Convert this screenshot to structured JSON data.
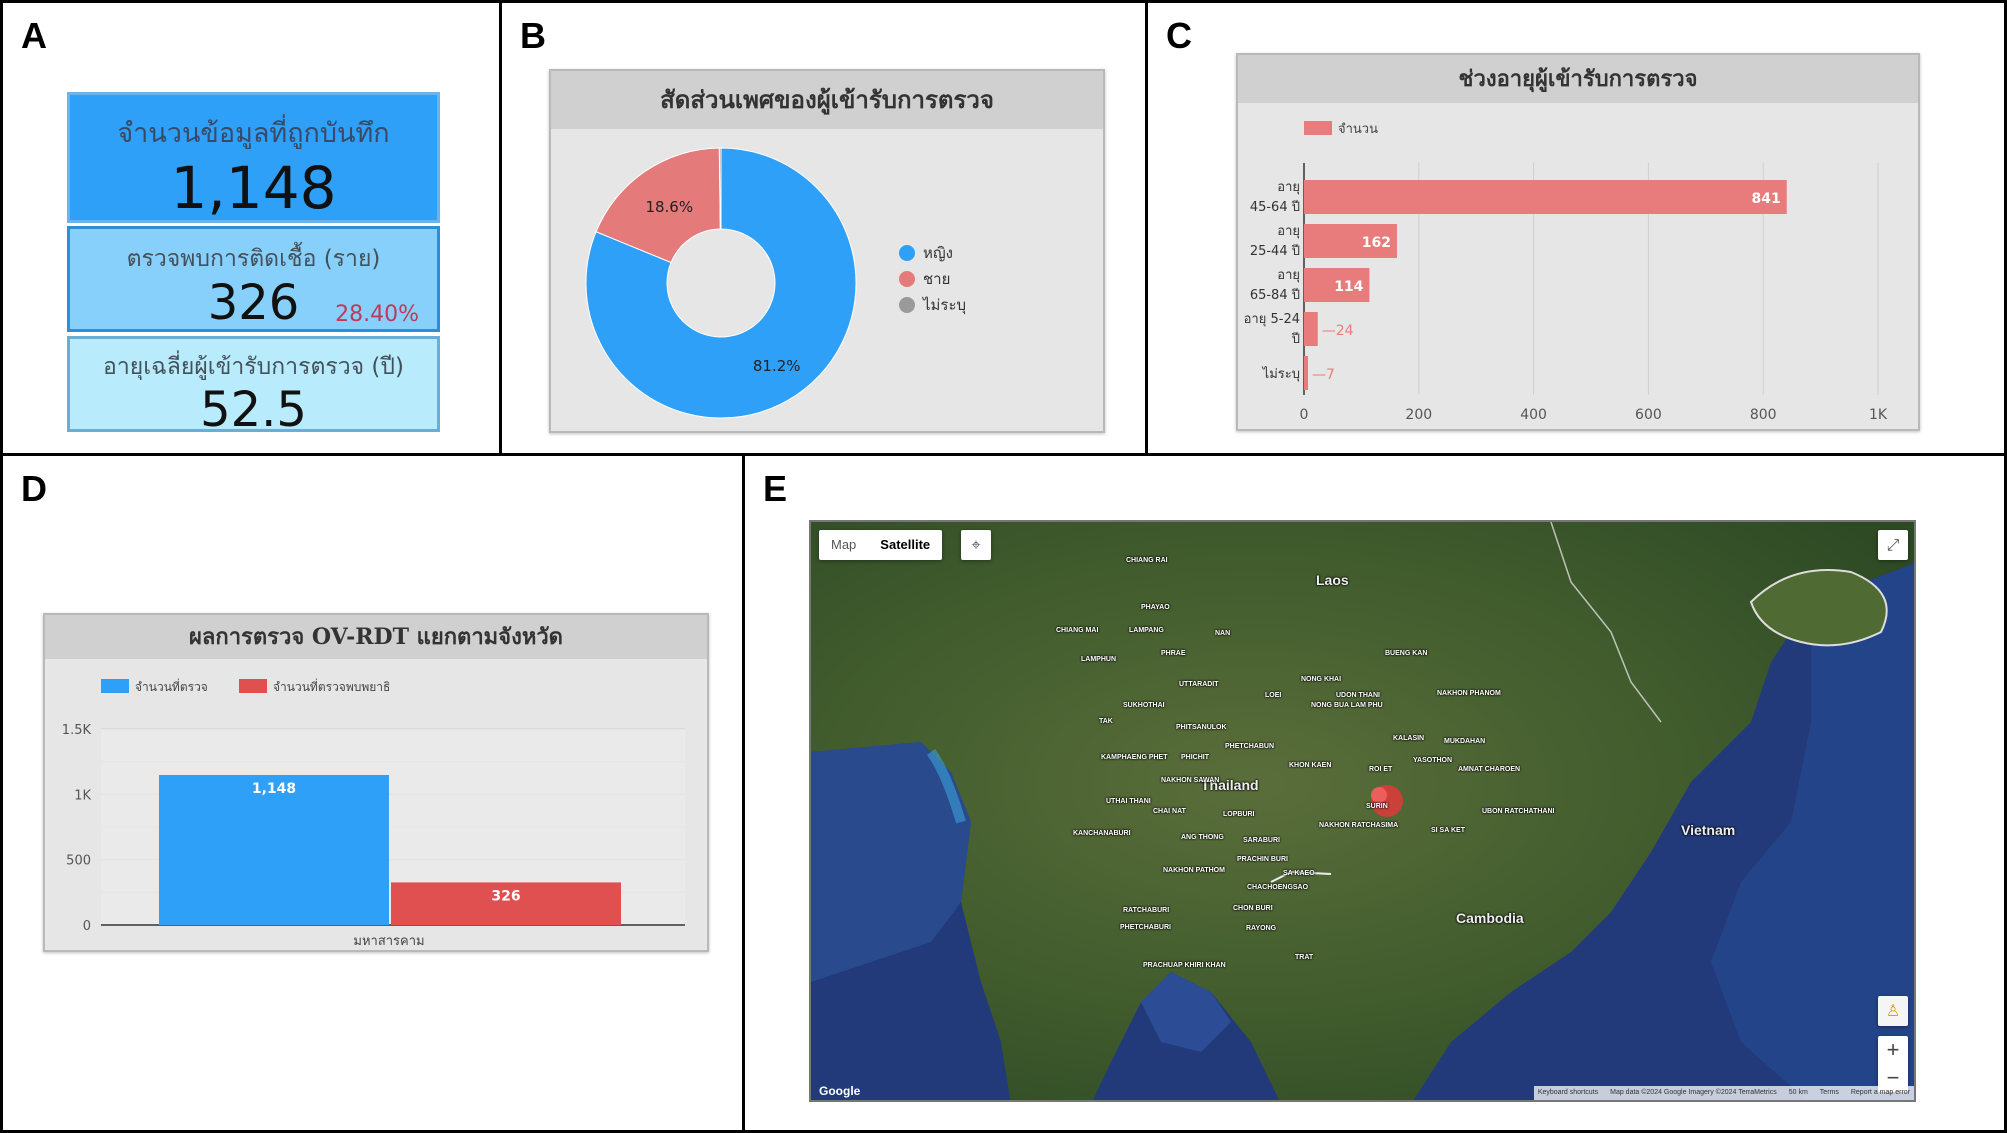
{
  "panel_letters": {
    "a": "A",
    "b": "B",
    "c": "C",
    "d": "D",
    "e": "E"
  },
  "kpi": {
    "total_title": "จำนวนข้อมูลที่ถูกบันทึก",
    "total_value": "1,148",
    "infected_title": "ตรวจพบการติดเชื้อ (ราย)",
    "infected_value": "326",
    "infected_pct": "28.40%",
    "age_title": "อายุเฉลี่ยผู้เข้ารับการตรวจ (ปี)",
    "age_value": "52.5"
  },
  "charts": {
    "gender": {
      "title": "สัดส่วนเพศของผู้เข้ารับการตรวจ"
    },
    "age": {
      "title": "ช่วงอายุผู้เข้ารับการตรวจ"
    },
    "result": {
      "title": "ผลการตรวจ OV-RDT แยกตามจังหวัด"
    }
  },
  "chart_data": [
    {
      "type": "pie",
      "title": "สัดส่วนเพศของผู้เข้ารับการตรวจ",
      "donut": true,
      "labels": [
        "หญิง",
        "ชาย",
        "ไม่ระบุ"
      ],
      "values": [
        81.2,
        18.6,
        0.2
      ],
      "display_labels": [
        "81.2%",
        "18.6%",
        ""
      ],
      "colors": [
        "#2ea0f8",
        "#e47a7a",
        "#9a9a9a"
      ],
      "legend": "right"
    },
    {
      "type": "bar",
      "orientation": "horizontal",
      "title": "ช่วงอายุผู้เข้ารับการตรวจ",
      "categories": [
        [
          "อายุ",
          "45-64 ปี"
        ],
        [
          "อายุ",
          "25-44 ปี"
        ],
        [
          "อายุ",
          "65-84 ปี"
        ],
        [
          "อายุ 5-24",
          "ปี"
        ],
        [
          "ไม่ระบุ"
        ]
      ],
      "series": [
        {
          "name": "จำนวน",
          "values": [
            841,
            162,
            114,
            24,
            7
          ],
          "color": "#e87c7c"
        }
      ],
      "xticks": [
        "0",
        "200",
        "400",
        "600",
        "800",
        "1K"
      ],
      "xlim": [
        0,
        1000
      ],
      "grid": true,
      "legend": "top-left"
    },
    {
      "type": "bar",
      "title": "ผลการตรวจ OV-RDT แยกตามจังหวัด",
      "categories": [
        "มหาสารคาม"
      ],
      "series": [
        {
          "name": "จำนวนที่ตรวจ",
          "values": [
            1148
          ],
          "color": "#2ea0f8",
          "value_labels": [
            "1,148"
          ]
        },
        {
          "name": "จำนวนที่ตรวจพบพยาธิ",
          "values": [
            326
          ],
          "color": "#e05050",
          "value_labels": [
            "326"
          ]
        }
      ],
      "yticks": [
        "0",
        "500",
        "1K",
        "1.5K"
      ],
      "ylim": [
        0,
        1500
      ],
      "grid": true,
      "legend": "top-left"
    }
  ],
  "map": {
    "toggle_map": "Map",
    "toggle_satellite": "Satellite",
    "zoom_in": "+",
    "zoom_out": "−",
    "google": "Google",
    "footer": [
      "Keyboard shortcuts",
      "Map data ©2024 Google Imagery ©2024 TerraMetrics",
      "50 km",
      "Terms",
      "Report a map error"
    ],
    "countries": [
      "Laos",
      "Thailand",
      "Cambodia",
      "Vietnam"
    ],
    "cities": [
      "CHIANG RAI",
      "PHAYAO",
      "CHIANG MAI",
      "LAMPANG",
      "NAN",
      "LAMPHUN",
      "PHRAE",
      "BUENG KAN",
      "NONG KHAI",
      "UTTARADIT",
      "LOEI",
      "UDON THANI",
      "NAKHON PHANOM",
      "SUKHOTHAI",
      "NONG BUA LAM PHU",
      "TAK",
      "PHITSANULOK",
      "KALASIN",
      "PHETCHABUN",
      "MUKDAHAN",
      "KAMPHAENG PHET",
      "PHICHIT",
      "KHON KAEN",
      "ROI ET",
      "YASOTHON",
      "AMNAT CHAROEN",
      "NAKHON SAWAN",
      "UTHAI THANI",
      "CHAI NAT",
      "SURIN",
      "UBON RATCHATHANI",
      "LOPBURI",
      "NAKHON RATCHASIMA",
      "KANCHANABURI",
      "ANG THONG",
      "SARABURI",
      "SI SA KET",
      "PRACHIN BURI",
      "NAKHON PATHOM",
      "SA KAEO",
      "CHACHOENGSAO",
      "RATCHABURI",
      "CHON BURI",
      "PHETCHABURI",
      "RAYONG",
      "TRAT",
      "PRACHUAP KHIRI KHAN"
    ]
  }
}
